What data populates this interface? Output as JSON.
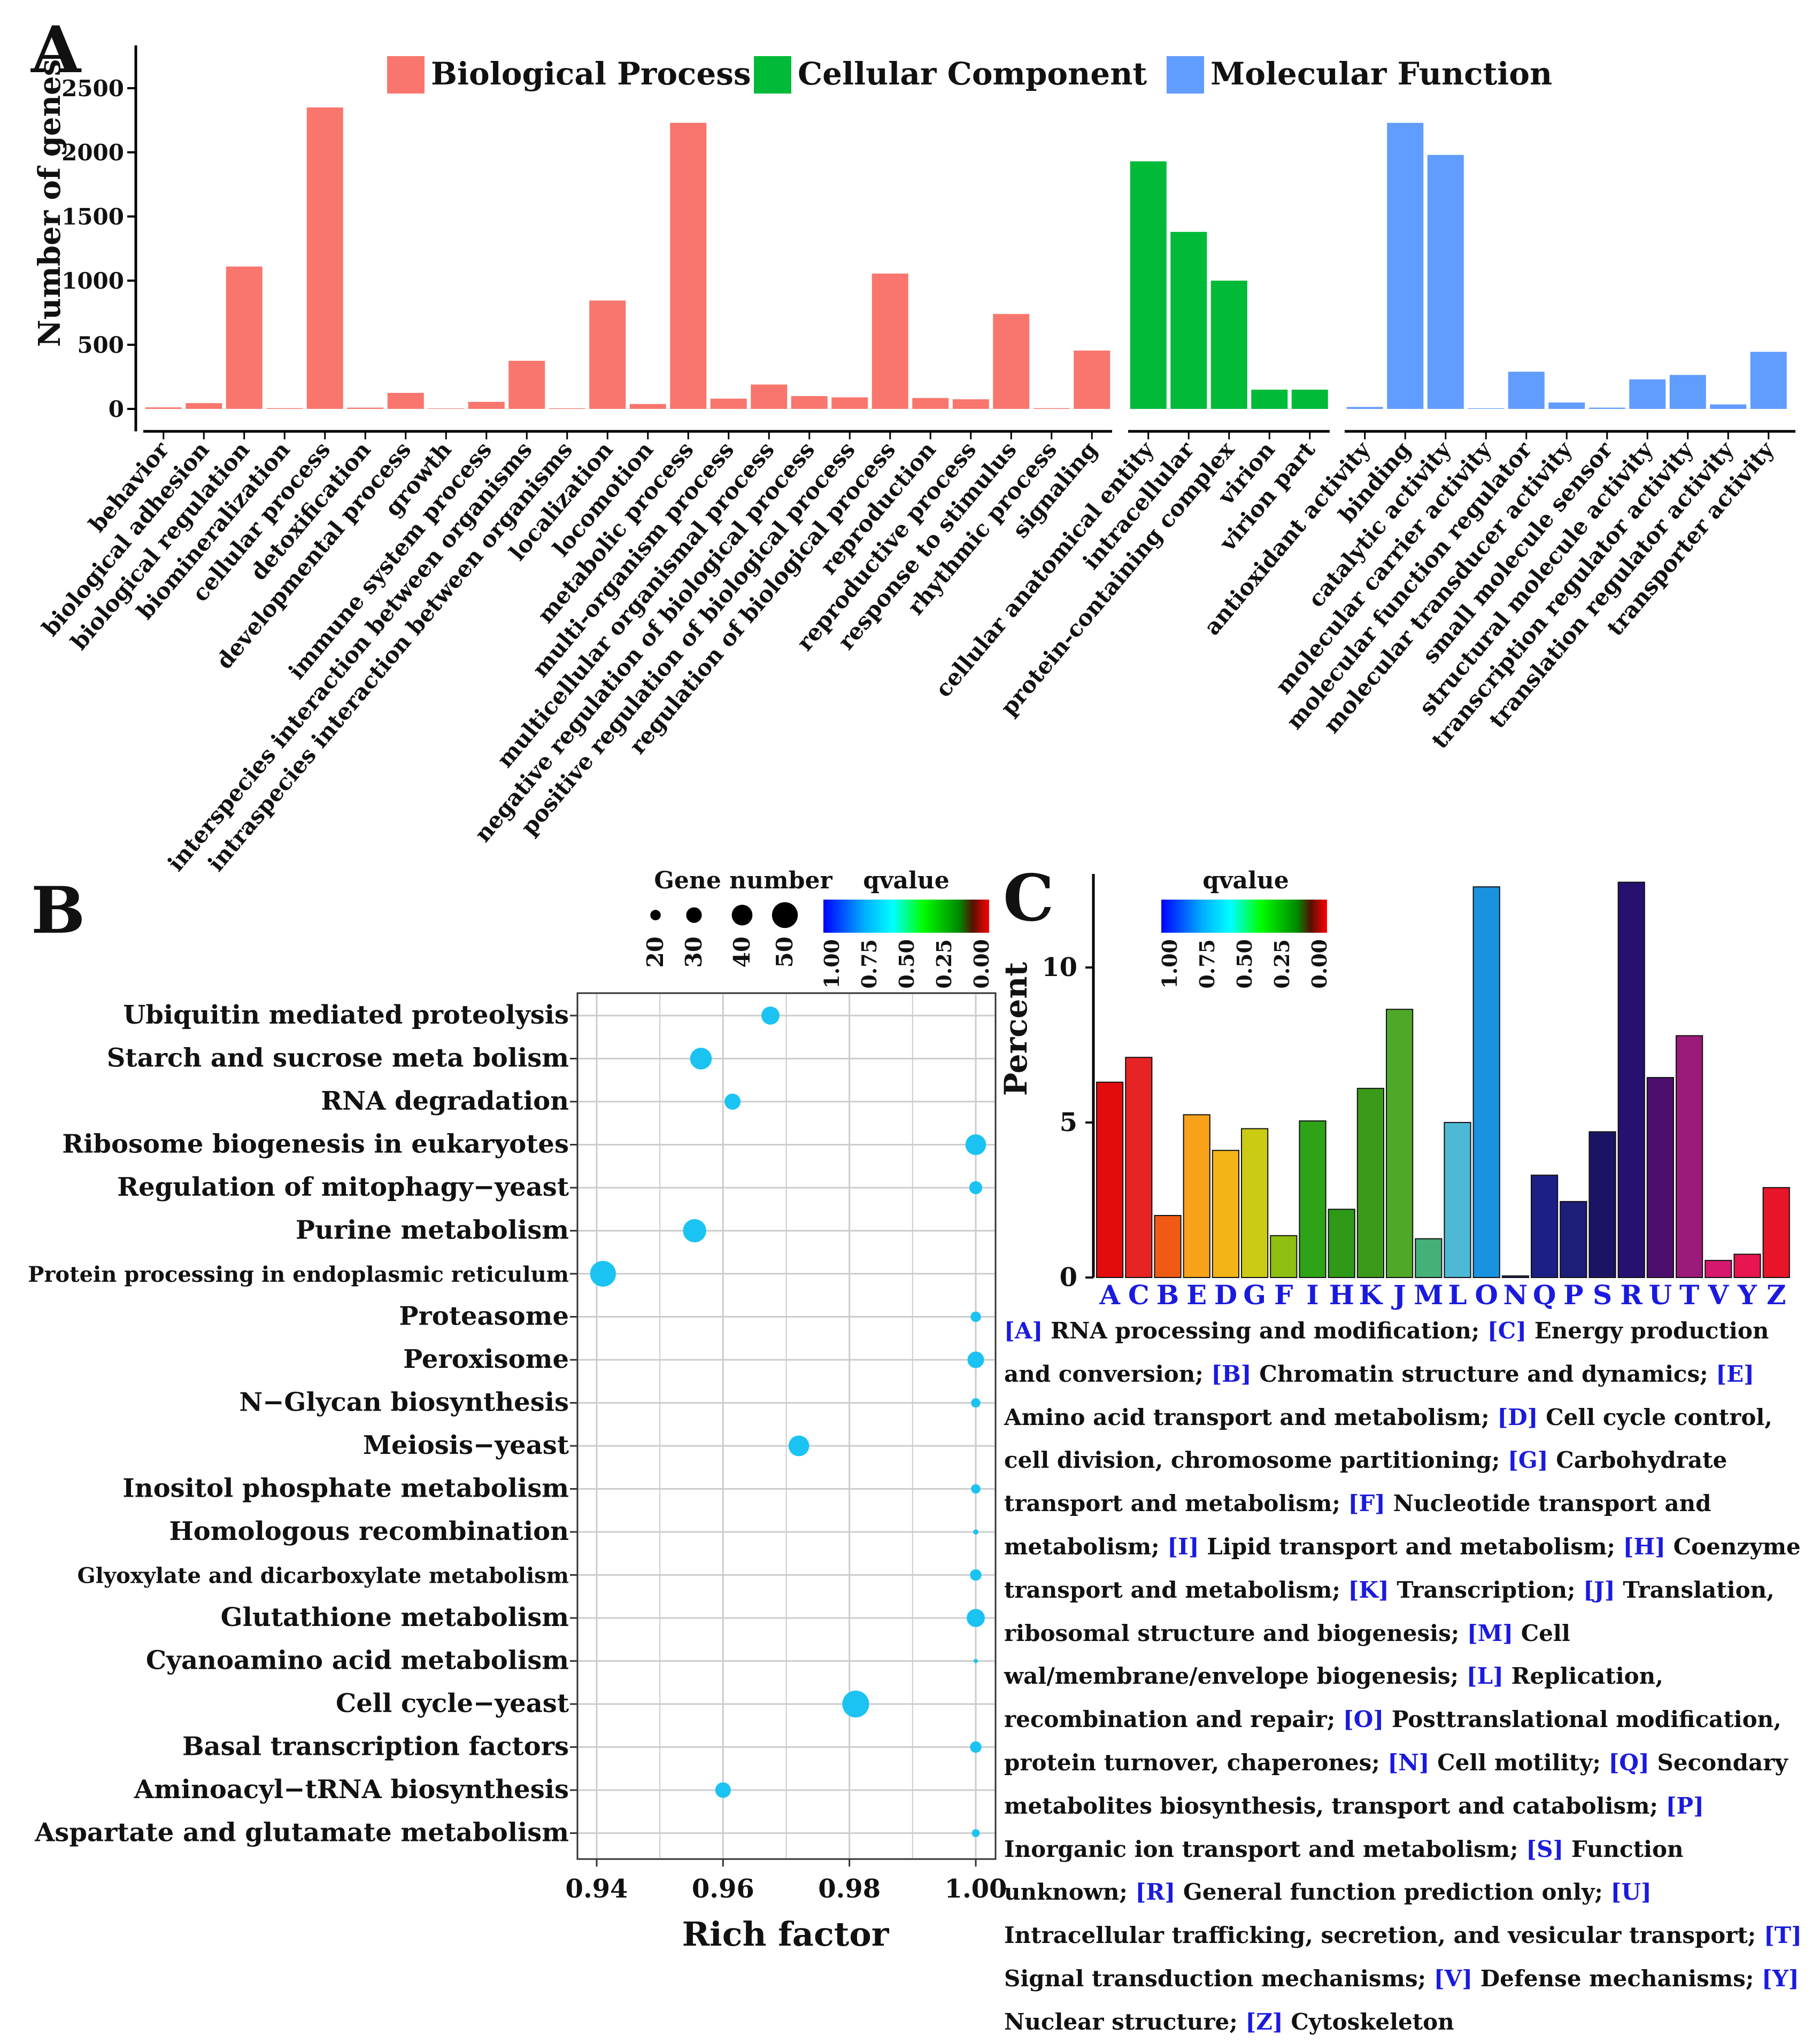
{
  "panel_labels": {
    "a": "A",
    "b": "B",
    "c": "C"
  },
  "chart_data": [
    {
      "id": "A",
      "type": "bar",
      "title": "",
      "ylabel": "Number of genes",
      "ylim": [
        -150,
        2650
      ],
      "yticks": [
        0,
        500,
        1000,
        1500,
        2000,
        2500
      ],
      "legend_position": "top",
      "series": [
        {
          "name": "Biological Process",
          "color": "#F8766D",
          "categories": [
            "behavior",
            "biological adhesion",
            "biological regulation",
            "biomineralization",
            "cellular process",
            "detoxification",
            "developmental process",
            "growth",
            "immune system process",
            "interspecies interaction between organisms",
            "intraspecies interaction between organisms",
            "localization",
            "locomotion",
            "metabolic process",
            "multi-organism process",
            "multicellular organismal process",
            "negative regulation of biological process",
            "positive regulation of biological process",
            "regulation of biological process",
            "reproduction",
            "reproductive process",
            "response to stimulus",
            "rhythmic process",
            "signaling"
          ],
          "values": [
            12,
            45,
            1110,
            6,
            2350,
            10,
            125,
            4,
            55,
            375,
            5,
            845,
            38,
            2230,
            80,
            190,
            100,
            90,
            1055,
            85,
            75,
            740,
            6,
            455
          ]
        },
        {
          "name": "Cellular Component",
          "color": "#00BA38",
          "categories": [
            "cellular anatomical entity",
            "intracellular",
            "protein-containing complex",
            "virion",
            "virion part"
          ],
          "values": [
            1930,
            1380,
            1000,
            150,
            150
          ]
        },
        {
          "name": "Molecular Function",
          "color": "#619CFF",
          "categories": [
            "antioxidant activity",
            "binding",
            "catalytic activity",
            "molecular carrier activity",
            "molecular function regulator",
            "molecular transducer activity",
            "small molecule sensor",
            "structural molecule activity",
            "transcription regulator activity",
            "translation regulator activity",
            "transporter activity"
          ],
          "values": [
            15,
            2230,
            1980,
            5,
            290,
            50,
            10,
            230,
            265,
            35,
            445
          ]
        }
      ]
    },
    {
      "id": "B",
      "type": "scatter",
      "xlabel": "Rich factor",
      "xlim": [
        0.94,
        1.0
      ],
      "xticks": [
        0.94,
        0.96,
        0.98,
        1.0
      ],
      "xtick_labels": [
        "0.94",
        "0.96",
        "0.98",
        "1.00"
      ],
      "size_legend_title": "Gene number",
      "size_legend_values": [
        20,
        30,
        40,
        50
      ],
      "color_legend_title": "qvalue",
      "color_legend_labels": [
        "1.00",
        "0.75",
        "0.50",
        "0.25",
        "0.00"
      ],
      "point_color": "#1BC3F2",
      "pathways": [
        {
          "name": "Ubiquitin mediated proteolysis",
          "rich_factor": 0.9675,
          "gene_number": 35
        },
        {
          "name": "Starch and sucrose meta bolism",
          "rich_factor": 0.9565,
          "gene_number": 42
        },
        {
          "name": "RNA degradation",
          "rich_factor": 0.9615,
          "gene_number": 31
        },
        {
          "name": "Ribosome biogenesis in eukaryotes",
          "rich_factor": 1.0,
          "gene_number": 40
        },
        {
          "name": "Regulation of mitophagy−yeast",
          "rich_factor": 1.0,
          "gene_number": 25
        },
        {
          "name": "Purine metabolism",
          "rich_factor": 0.9555,
          "gene_number": 45
        },
        {
          "name": "Protein processing in endoplasmic reticulum",
          "rich_factor": 0.941,
          "gene_number": 50
        },
        {
          "name": "Proteasome",
          "rich_factor": 1.0,
          "gene_number": 20
        },
        {
          "name": "Peroxisome",
          "rich_factor": 1.0,
          "gene_number": 32
        },
        {
          "name": "N−Glycan biosynthesis",
          "rich_factor": 1.0,
          "gene_number": 18
        },
        {
          "name": "Meiosis−yeast",
          "rich_factor": 0.972,
          "gene_number": 40
        },
        {
          "name": "Inositol phosphate metabolism",
          "rich_factor": 1.0,
          "gene_number": 18
        },
        {
          "name": "Homologous recombination",
          "rich_factor": 1.0,
          "gene_number": 10
        },
        {
          "name": "Glyoxylate and dicarboxylate metabolism",
          "rich_factor": 1.0,
          "gene_number": 22
        },
        {
          "name": "Glutathione metabolism",
          "rich_factor": 1.0,
          "gene_number": 35
        },
        {
          "name": "Cyanoamino acid metabolism",
          "rich_factor": 1.0,
          "gene_number": 8
        },
        {
          "name": "Cell cycle−yeast",
          "rich_factor": 0.981,
          "gene_number": 52
        },
        {
          "name": "Basal transcription factors",
          "rich_factor": 1.0,
          "gene_number": 22
        },
        {
          "name": "Aminoacyl−tRNA biosynthesis",
          "rich_factor": 0.96,
          "gene_number": 30
        },
        {
          "name": "Aspartate and glutamate metabolism",
          "rich_factor": 1.0,
          "gene_number": 15
        }
      ]
    },
    {
      "id": "C",
      "type": "bar",
      "ylabel": "Percent",
      "ylim": [
        0,
        13.2
      ],
      "yticks": [
        0,
        5,
        10
      ],
      "color_legend_title": "qvalue",
      "color_legend_labels": [
        "1.00",
        "0.75",
        "0.50",
        "0.25",
        "0.00"
      ],
      "categories": [
        "A",
        "C",
        "B",
        "E",
        "D",
        "G",
        "F",
        "I",
        "H",
        "K",
        "J",
        "M",
        "L",
        "O",
        "N",
        "Q",
        "P",
        "S",
        "R",
        "U",
        "T",
        "V",
        "Y",
        "Z"
      ],
      "values": [
        6.3,
        7.1,
        2.0,
        5.25,
        4.1,
        4.8,
        1.35,
        5.05,
        2.2,
        6.1,
        8.65,
        1.25,
        5.0,
        12.6,
        0.05,
        3.3,
        2.45,
        4.7,
        12.75,
        6.45,
        7.8,
        0.55,
        0.75,
        2.9
      ],
      "colors": [
        "#E30B0B",
        "#E62424",
        "#F05A14",
        "#F8A21C",
        "#F2B416",
        "#CBCB14",
        "#8FBF11",
        "#2EA318",
        "#2E9A18",
        "#3C9A1A",
        "#4FA828",
        "#44B07A",
        "#4DB8D4",
        "#1993E0",
        "#1E2A86",
        "#1B1F86",
        "#1D1E78",
        "#1B1464",
        "#261070",
        "#4D0F6E",
        "#9B1A7A",
        "#D6196E",
        "#E81650",
        "#E8152A"
      ],
      "legend_codes": [
        {
          "code": "[A]",
          "text": " RNA processing and modification; "
        },
        {
          "code": "[C]",
          "text": " Energy production and conversion; "
        },
        {
          "code": "[B]",
          "text": " Chromatin structure and dynamics; "
        },
        {
          "code": "[E]",
          "text": " Amino acid transport and metabolism; "
        },
        {
          "code": "[D]",
          "text": " Cell cycle control, cell division, chromosome partitioning; "
        },
        {
          "code": "[G]",
          "text": " Carbohydrate transport and metabolism; "
        },
        {
          "code": "[F]",
          "text": " Nucleotide transport and metabolism; "
        },
        {
          "code": "[I]",
          "text": " Lipid transport and metabolism; "
        },
        {
          "code": "[H]",
          "text": " Coenzyme transport and metabolism; "
        },
        {
          "code": "[K]",
          "text": " Transcription; "
        },
        {
          "code": "[J]",
          "text": " Translation, ribosomal structure and biogenesis; "
        },
        {
          "code": "[M]",
          "text": " Cell wal/membrane/envelope biogenesis; "
        },
        {
          "code": "[L]",
          "text": " Replication, recombination and repair; "
        },
        {
          "code": "[O]",
          "text": " Posttranslational modification, protein turnover, chaperones; "
        },
        {
          "code": "[N]",
          "text": " Cell motility; "
        },
        {
          "code": "[Q]",
          "text": " Secondary metabolites biosynthesis, transport and catabolism; "
        },
        {
          "code": "[P]",
          "text": " Inorganic ion transport and metabolism; "
        },
        {
          "code": "[S]",
          "text": " Function unknown; "
        },
        {
          "code": "[R]",
          "text": " General function prediction only; "
        },
        {
          "code": "[U]",
          "text": " Intracellular trafficking, secretion, and vesicular transport; "
        },
        {
          "code": "[T]",
          "text": " Signal transduction mechanisms; "
        },
        {
          "code": "[V]",
          "text": " Defense mechanisms; "
        },
        {
          "code": "[Y]",
          "text": " Nuclear structure; "
        },
        {
          "code": "[Z]",
          "text": " Cytoskeleton"
        }
      ]
    }
  ]
}
